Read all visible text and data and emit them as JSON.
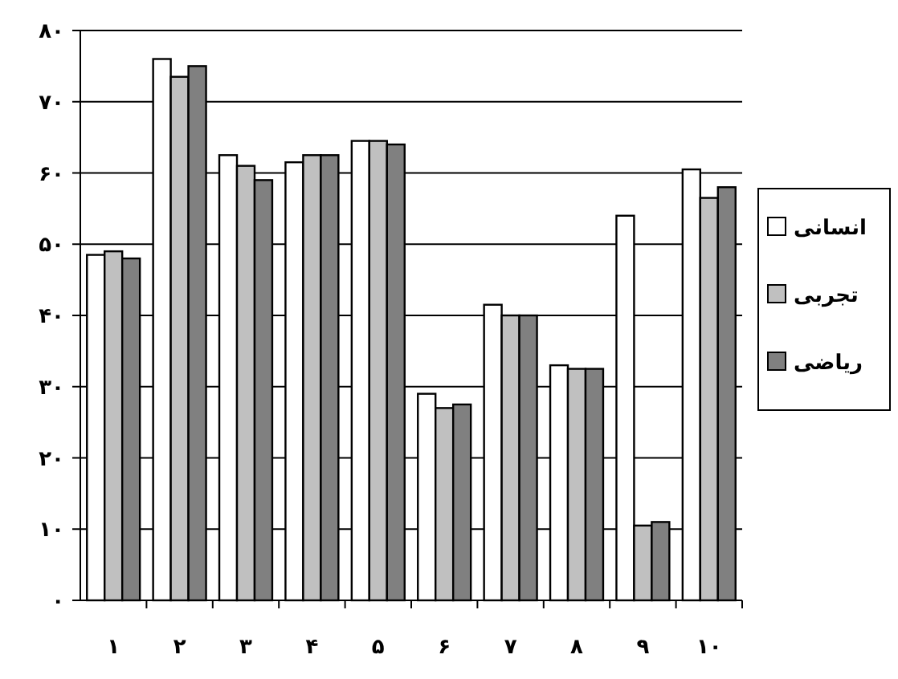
{
  "chart_data": {
    "type": "bar",
    "categories": [
      "۱",
      "۲",
      "۳",
      "۴",
      "۵",
      "۶",
      "۷",
      "۸",
      "۹",
      "۱۰"
    ],
    "series": [
      {
        "name": "انسانی",
        "color": "#ffffff",
        "values": [
          48.5,
          76,
          62.5,
          61.5,
          64.5,
          29,
          41.5,
          33,
          54,
          60.5
        ]
      },
      {
        "name": "تجربی",
        "color": "#c0c0c0",
        "values": [
          49,
          73.5,
          61,
          62.5,
          64.5,
          27,
          40,
          32.5,
          10.5,
          56.5
        ]
      },
      {
        "name": "ریاضی",
        "color": "#808080",
        "values": [
          48,
          75,
          59,
          62.5,
          64,
          27.5,
          40,
          32.5,
          11,
          58
        ]
      }
    ],
    "ylim": [
      0,
      80
    ],
    "yticks": [
      {
        "value": 0,
        "label": "۰"
      },
      {
        "value": 10,
        "label": "۱۰"
      },
      {
        "value": 20,
        "label": "۲۰"
      },
      {
        "value": 30,
        "label": "۳۰"
      },
      {
        "value": 40,
        "label": "۴۰"
      },
      {
        "value": 50,
        "label": "۵۰"
      },
      {
        "value": 60,
        "label": "۶۰"
      },
      {
        "value": 70,
        "label": "۷۰"
      },
      {
        "value": 80,
        "label": "۸۰"
      }
    ],
    "grid": "y",
    "legend": "right"
  }
}
